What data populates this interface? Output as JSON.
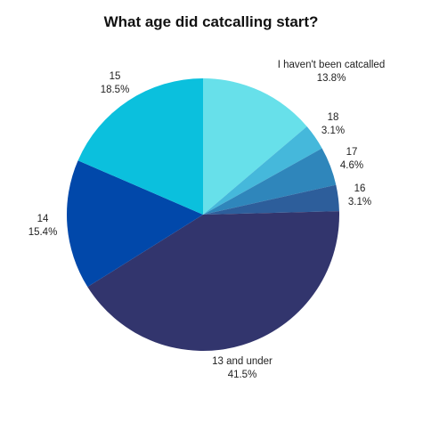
{
  "chart_data": {
    "type": "pie",
    "title": "What age did catcalling start?",
    "start_angle_deg": 0,
    "direction": "clockwise",
    "slices": [
      {
        "label": "I haven't been catcalled",
        "value": 13.8,
        "display": "13.8%",
        "color": "#67E0EA"
      },
      {
        "label": "18",
        "value": 3.1,
        "display": "3.1%",
        "color": "#45B8DB"
      },
      {
        "label": "17",
        "value": 4.6,
        "display": "4.6%",
        "color": "#2F86BB"
      },
      {
        "label": "16",
        "value": 3.1,
        "display": "3.1%",
        "color": "#2D5E9B"
      },
      {
        "label": "13 and under",
        "value": 41.5,
        "display": "41.5%",
        "color": "#32356D"
      },
      {
        "label": "14",
        "value": 15.4,
        "display": "15.4%",
        "color": "#0148AA"
      },
      {
        "label": "15",
        "value": 18.5,
        "display": "18.5%",
        "color": "#0BC0DD"
      }
    ]
  }
}
